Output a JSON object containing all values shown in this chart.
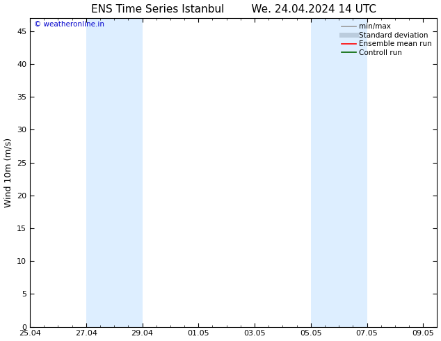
{
  "title_left": "ENS Time Series Istanbul",
  "title_right": "We. 24.04.2024 14 UTC",
  "ylabel": "Wind 10m (m/s)",
  "watermark": "© weatheronline.in",
  "watermark_color": "#0000cc",
  "ylim": [
    0,
    47
  ],
  "yticks": [
    0,
    5,
    10,
    15,
    20,
    25,
    30,
    35,
    40,
    45
  ],
  "xtick_labels": [
    "25.04",
    "27.04",
    "29.04",
    "01.05",
    "03.05",
    "05.05",
    "07.05",
    "09.05"
  ],
  "xtick_positions": [
    0,
    2,
    4,
    6,
    8,
    10,
    12,
    14
  ],
  "xlim": [
    0,
    14
  ],
  "shaded_bands": [
    {
      "x_start": 2,
      "x_end": 4,
      "color": "#ddeeff"
    },
    {
      "x_start": 10,
      "x_end": 12,
      "color": "#ddeeff"
    }
  ],
  "background_color": "#ffffff",
  "plot_bg_color": "#ffffff",
  "legend_items": [
    {
      "label": "min/max",
      "color": "#999999",
      "lw": 1.2,
      "style": "solid"
    },
    {
      "label": "Standard deviation",
      "color": "#bbccdd",
      "lw": 5,
      "style": "solid"
    },
    {
      "label": "Ensemble mean run",
      "color": "#ff0000",
      "lw": 1.2,
      "style": "solid"
    },
    {
      "label": "Controll run",
      "color": "#006600",
      "lw": 1.2,
      "style": "solid"
    }
  ],
  "title_fontsize": 11,
  "tick_fontsize": 8,
  "ylabel_fontsize": 9,
  "legend_fontsize": 7.5,
  "watermark_fontsize": 7.5
}
